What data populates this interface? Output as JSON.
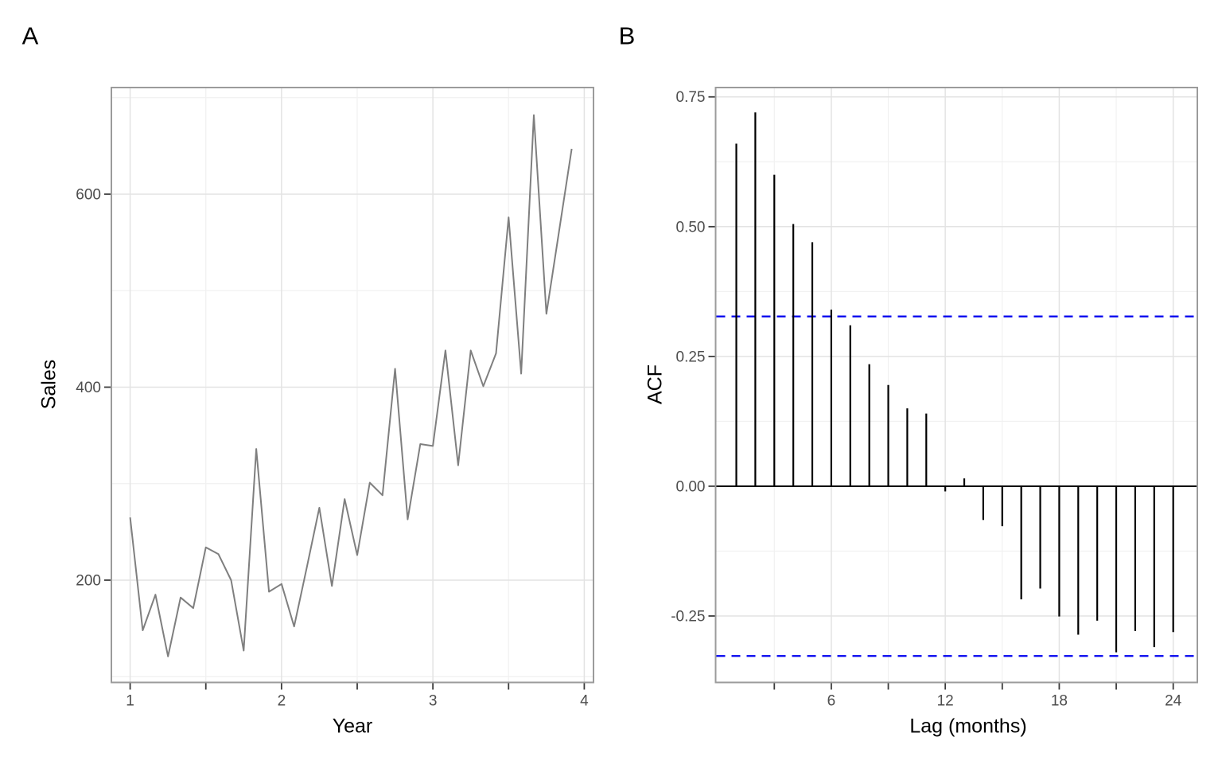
{
  "figure": {
    "background": "#ffffff"
  },
  "panels": {
    "a": {
      "tag": "A"
    },
    "b": {
      "tag": "B"
    }
  },
  "colors": {
    "series_line": "#7f7f7f",
    "acf_bar": "#000000",
    "zero_line": "#000000",
    "conf_line": "#0000ee",
    "grid_major": "#e3e3e3",
    "grid_minor": "#f1f1f1",
    "panel_border": "#9b9b9b",
    "tick": "#3c3c3c",
    "tick_label": "#4d4d4d",
    "axis_title": "#000000"
  },
  "chart_data": [
    {
      "type": "line",
      "panel": "A",
      "title": "",
      "xlabel": "Year",
      "ylabel": "Sales",
      "legend": "none",
      "grid": true,
      "x": [
        1.0,
        1.083,
        1.167,
        1.25,
        1.333,
        1.417,
        1.5,
        1.583,
        1.667,
        1.75,
        1.833,
        1.917,
        2.0,
        2.083,
        2.167,
        2.25,
        2.333,
        2.417,
        2.5,
        2.583,
        2.667,
        2.75,
        2.833,
        2.917,
        3.0,
        3.083,
        3.167,
        3.25,
        3.333,
        3.417,
        3.5,
        3.583,
        3.667,
        3.75,
        3.833,
        3.917
      ],
      "y": [
        265,
        148,
        185,
        121,
        182,
        171,
        234,
        227,
        200,
        127,
        336,
        188,
        196,
        152,
        213,
        275,
        194,
        284,
        226,
        301,
        288,
        419,
        263,
        341,
        339,
        438,
        319,
        438,
        401,
        435,
        576,
        414,
        682,
        476,
        561,
        647
      ],
      "xlim": [
        0.876,
        4.061
      ],
      "ylim": [
        94,
        710.5
      ],
      "x_major_ticks": [
        1,
        2,
        3,
        4
      ],
      "x_tick_labels": [
        "1",
        "2",
        "3",
        "4"
      ],
      "x_minor_ticks": [
        1.5,
        2.5,
        3.5
      ],
      "y_major_ticks": [
        200,
        400,
        600
      ],
      "y_tick_labels": [
        "200",
        "400",
        "600"
      ],
      "y_minor_ticks": [
        100,
        300,
        500,
        700
      ]
    },
    {
      "type": "lollipop",
      "panel": "B",
      "title": "",
      "xlabel": "Lag (months)",
      "ylabel": "ACF",
      "legend": "none",
      "grid": true,
      "lags": [
        1,
        2,
        3,
        4,
        5,
        6,
        7,
        8,
        9,
        10,
        11,
        12,
        13,
        14,
        15,
        16,
        17,
        18,
        19,
        20,
        21,
        22,
        23,
        24
      ],
      "acf": [
        0.66,
        0.72,
        0.6,
        0.505,
        0.47,
        0.34,
        0.31,
        0.235,
        0.195,
        0.15,
        0.14,
        -0.01,
        0.015,
        -0.065,
        -0.077,
        -0.218,
        -0.197,
        -0.251,
        -0.286,
        -0.259,
        -0.32,
        -0.279,
        -0.31,
        -0.281
      ],
      "conf_bound": 0.327,
      "xlim": [
        -0.09,
        25.27
      ],
      "ylim": [
        -0.378,
        0.768
      ],
      "x_major_ticks": [
        6,
        12,
        18,
        24
      ],
      "x_tick_labels": [
        "6",
        "12",
        "18",
        "24"
      ],
      "x_minor_ticks": [
        3,
        9,
        15,
        21
      ],
      "y_major_ticks": [
        0.75,
        0.5,
        0.25,
        0.0,
        -0.25
      ],
      "y_tick_labels": [
        "0.75",
        "0.50",
        "0.25",
        "0.00",
        "-0.25"
      ],
      "y_minor_ticks": [
        0.625,
        0.375,
        0.125,
        -0.125
      ]
    }
  ]
}
